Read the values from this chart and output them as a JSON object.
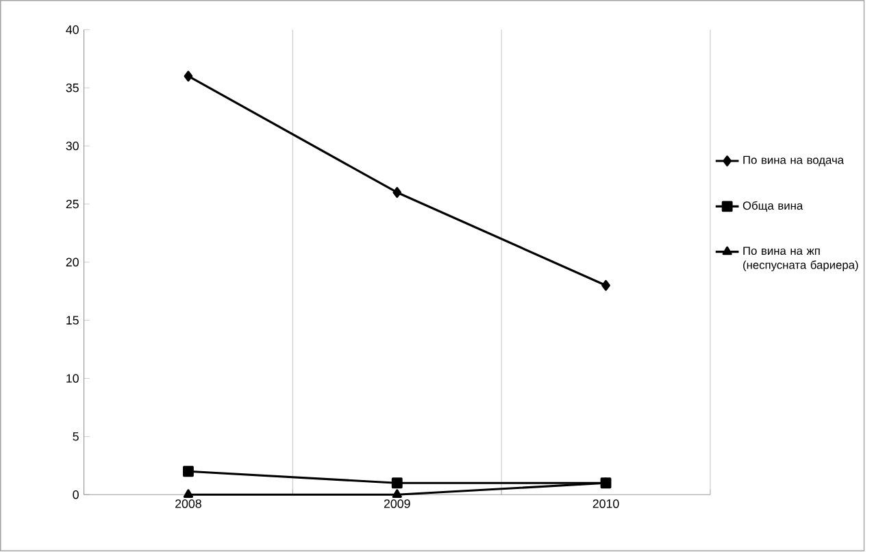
{
  "chart_data": {
    "type": "line",
    "categories": [
      "2008",
      "2009",
      "2010"
    ],
    "series": [
      {
        "name": "По вина на водача",
        "color": "#000000",
        "marker": "diamond",
        "values": [
          36,
          26,
          18
        ]
      },
      {
        "name": "Обща вина",
        "color": "#000000",
        "marker": "square",
        "values": [
          2,
          1,
          1
        ]
      },
      {
        "name": "По вина на жп (неспусната бариера)",
        "color": "#000000",
        "marker": "triangle",
        "values": [
          0,
          0,
          1
        ]
      }
    ],
    "ylim": [
      0,
      40
    ],
    "yticks": [
      0,
      5,
      10,
      15,
      20,
      25,
      30,
      35,
      40
    ],
    "grid": "x",
    "legend": "right",
    "line_style": "solid"
  }
}
